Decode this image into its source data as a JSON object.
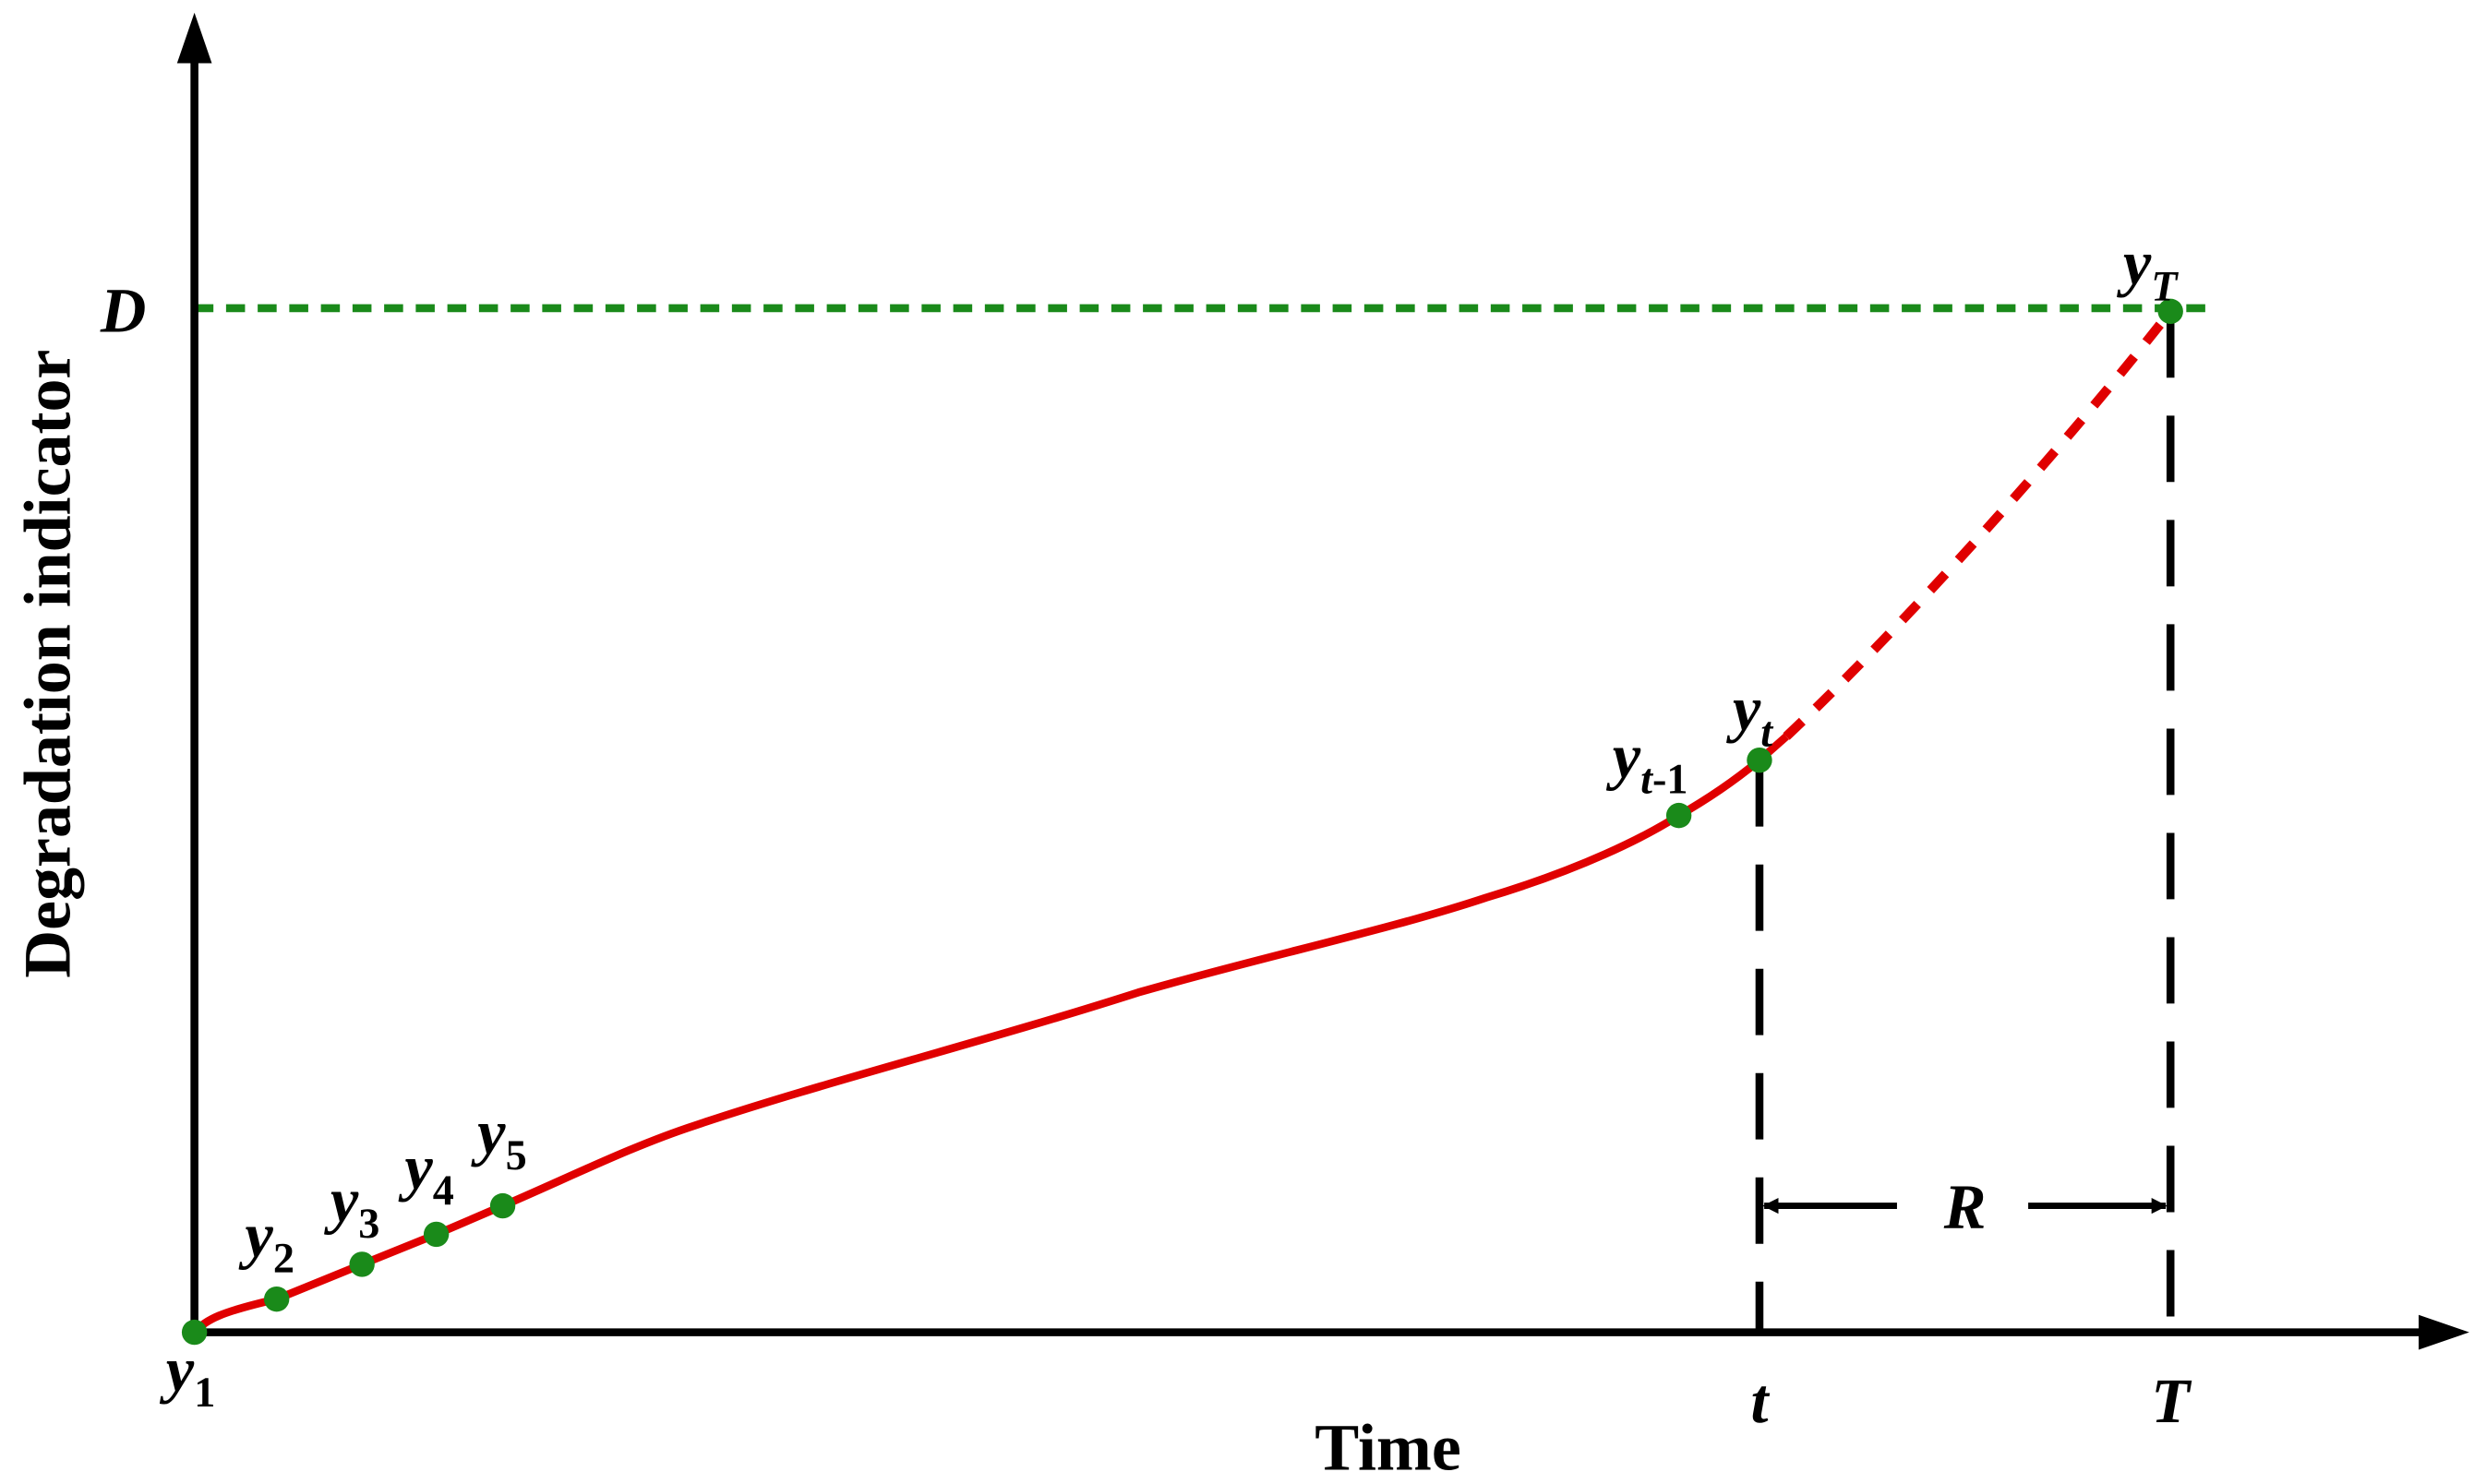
{
  "axes": {
    "y_label": "Degradation indicator",
    "x_label": "Time"
  },
  "markers": {
    "threshold": "D",
    "current_time": "t",
    "failure_time": "T",
    "rul": "R"
  },
  "points": [
    {
      "var": "y",
      "sub": "1"
    },
    {
      "var": "y",
      "sub": "2"
    },
    {
      "var": "y",
      "sub": "3"
    },
    {
      "var": "y",
      "sub": "4"
    },
    {
      "var": "y",
      "sub": "5"
    },
    {
      "var": "y",
      "sub": "t",
      "sub_suffix": "-1"
    },
    {
      "var": "y",
      "sub": "t"
    },
    {
      "var": "y",
      "sub": "T"
    }
  ]
}
